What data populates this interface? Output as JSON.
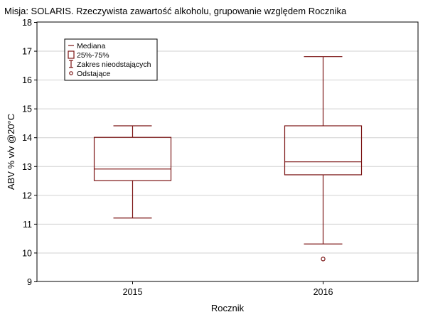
{
  "chart_data": {
    "type": "box",
    "title": "Misja: SOLARIS. Rzeczywista zawartość alkoholu, grupowanie względem Rocznika",
    "xlabel": "Rocznik",
    "ylabel": "ABV % v/v @20°C",
    "ylim": [
      9,
      18
    ],
    "yticks": [
      9,
      10,
      11,
      12,
      13,
      14,
      15,
      16,
      17,
      18
    ],
    "grid": true,
    "legend_position": "top-left",
    "legend": [
      {
        "symbol": "median",
        "label": "Mediana"
      },
      {
        "symbol": "box",
        "label": "25%-75%"
      },
      {
        "symbol": "whisker",
        "label": "Zakres nieodstających"
      },
      {
        "symbol": "outlier",
        "label": "Odstające"
      }
    ],
    "categories": [
      "2015",
      "2016"
    ],
    "boxes": [
      {
        "category": "2015",
        "whisker_low": 11.2,
        "q1": 12.5,
        "median": 12.9,
        "q3": 14.0,
        "whisker_high": 14.4,
        "outliers": []
      },
      {
        "category": "2016",
        "whisker_low": 10.3,
        "q1": 12.7,
        "median": 13.15,
        "q3": 14.4,
        "whisker_high": 16.8,
        "outliers": [
          9.78
        ]
      }
    ],
    "color": "#7b1414"
  }
}
